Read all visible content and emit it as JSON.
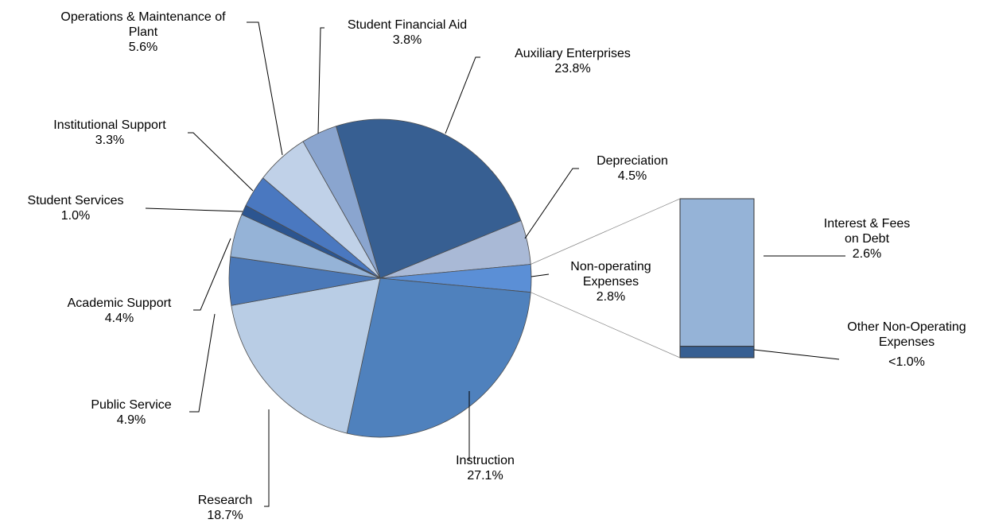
{
  "chart_data": {
    "type": "pie_of_bar",
    "categories": [
      "Auxiliary Enterprises",
      "Depreciation",
      "Non-operating Expenses",
      "Instruction",
      "Research",
      "Public Service",
      "Academic Support",
      "Student Services",
      "Institutional Support",
      "Operations & Maintenance of Plant",
      "Student Financial Aid"
    ],
    "values": [
      23.8,
      4.5,
      2.8,
      27.1,
      18.7,
      4.9,
      4.4,
      1.0,
      3.3,
      5.6,
      3.8
    ],
    "value_labels": [
      "23.8%",
      "4.5%",
      "2.8%",
      "27.1%",
      "18.7%",
      "4.9%",
      "4.4%",
      "1.0%",
      "3.3%",
      "5.6%",
      "3.8%"
    ],
    "colors": [
      "#375f92",
      "#a9b9d6",
      "#5b8fd6",
      "#4f81bd",
      "#b9cde5",
      "#4a78b8",
      "#95b3d7",
      "#2c5590",
      "#4a78c0",
      "#c0d1e8",
      "#8aa5cf"
    ],
    "bar": {
      "categories": [
        "Interest & Fees on Debt",
        "Other Non-Operating Expenses"
      ],
      "values": [
        2.6,
        0.2
      ],
      "value_labels": [
        "2.6%",
        "<1.0%"
      ],
      "colors": [
        "#95b3d7",
        "#375f92"
      ]
    }
  }
}
